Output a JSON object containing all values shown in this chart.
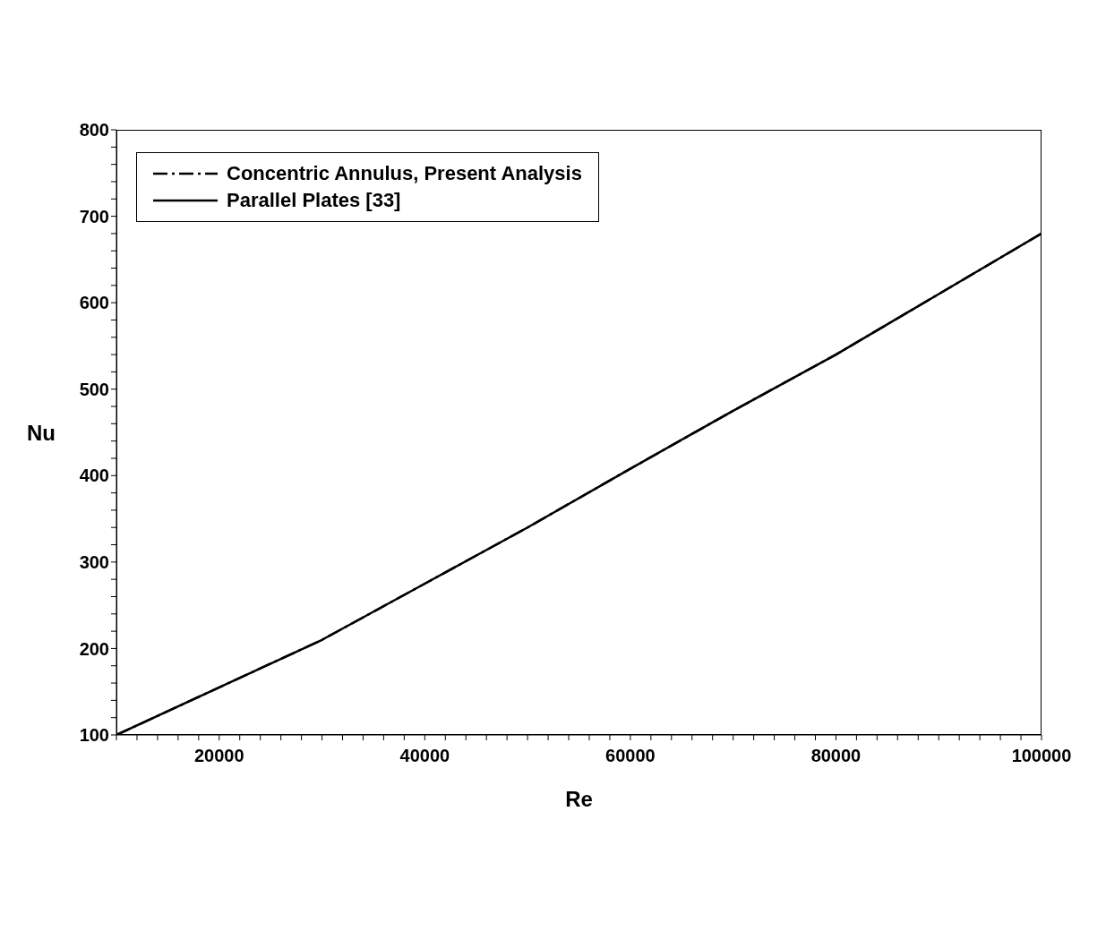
{
  "chart_data": {
    "type": "line",
    "xlabel": "Re",
    "ylabel": "Nu",
    "legend": "top left",
    "marker": "none",
    "grid": false,
    "xlim": [
      10000,
      100000
    ],
    "xticks": [
      {
        "value": 10000,
        "label": null
      },
      {
        "value": 12000,
        "label": null
      },
      {
        "value": 14000,
        "label": null
      },
      {
        "value": 16000,
        "label": null
      },
      {
        "value": 18000,
        "label": null
      },
      20000,
      {
        "value": 22000,
        "label": null
      },
      {
        "value": 24000,
        "label": null
      },
      {
        "value": 26000,
        "label": null
      },
      {
        "value": 28000,
        "label": null
      },
      {
        "value": 30000,
        "label": null
      },
      {
        "value": 32000,
        "label": null
      },
      {
        "value": 34000,
        "label": null
      },
      {
        "value": 36000,
        "label": null
      },
      {
        "value": 38000,
        "label": null
      },
      40000,
      {
        "value": 42000,
        "label": null
      },
      {
        "value": 44000,
        "label": null
      },
      {
        "value": 46000,
        "label": null
      },
      {
        "value": 48000,
        "label": null
      },
      {
        "value": 50000,
        "label": null
      },
      {
        "value": 52000,
        "label": null
      },
      {
        "value": 54000,
        "label": null
      },
      {
        "value": 56000,
        "label": null
      },
      {
        "value": 58000,
        "label": null
      },
      60000,
      {
        "value": 62000,
        "label": null
      },
      {
        "value": 64000,
        "label": null
      },
      {
        "value": 66000,
        "label": null
      },
      {
        "value": 68000,
        "label": null
      },
      {
        "value": 70000,
        "label": null
      },
      {
        "value": 72000,
        "label": null
      },
      {
        "value": 74000,
        "label": null
      },
      {
        "value": 76000,
        "label": null
      },
      {
        "value": 78000,
        "label": null
      },
      80000,
      {
        "value": 82000,
        "label": null
      },
      {
        "value": 84000,
        "label": null
      },
      {
        "value": 86000,
        "label": null
      },
      {
        "value": 88000,
        "label": null
      },
      {
        "value": 90000,
        "label": null
      },
      {
        "value": 92000,
        "label": null
      },
      {
        "value": 94000,
        "label": null
      },
      {
        "value": 96000,
        "label": null
      },
      {
        "value": 98000,
        "label": null
      },
      100000
    ],
    "ylim": [
      100,
      800
    ],
    "yticks": [
      100,
      {
        "value": 120,
        "label": null
      },
      {
        "value": 140,
        "label": null
      },
      {
        "value": 160,
        "label": null
      },
      {
        "value": 180,
        "label": null
      },
      200,
      {
        "value": 220,
        "label": null
      },
      {
        "value": 240,
        "label": null
      },
      {
        "value": 260,
        "label": null
      },
      {
        "value": 280,
        "label": null
      },
      300,
      {
        "value": 320,
        "label": null
      },
      {
        "value": 340,
        "label": null
      },
      {
        "value": 360,
        "label": null
      },
      {
        "value": 380,
        "label": null
      },
      400,
      {
        "value": 420,
        "label": null
      },
      {
        "value": 440,
        "label": null
      },
      {
        "value": 460,
        "label": null
      },
      {
        "value": 480,
        "label": null
      },
      500,
      {
        "value": 520,
        "label": null
      },
      {
        "value": 540,
        "label": null
      },
      {
        "value": 560,
        "label": null
      },
      {
        "value": 580,
        "label": null
      },
      600,
      {
        "value": 620,
        "label": null
      },
      {
        "value": 640,
        "label": null
      },
      {
        "value": 660,
        "label": null
      },
      {
        "value": 680,
        "label": null
      },
      700,
      {
        "value": 720,
        "label": null
      },
      {
        "value": 740,
        "label": null
      },
      {
        "value": 760,
        "label": null
      },
      {
        "value": 780,
        "label": null
      },
      800
    ],
    "x": [
      10000,
      20000,
      30000,
      40000,
      50000,
      60000,
      70000,
      80000,
      90000,
      100000
    ],
    "series": [
      {
        "name": "Concentric Annulus, Present Analysis",
        "color": "#000000",
        "line_style": "dashed",
        "values": [
          100,
          155,
          210,
          275,
          340,
          408,
          475,
          540,
          610,
          680
        ]
      },
      {
        "name": "Parallel Plates [33]",
        "color": "#000000",
        "line_style": "solid",
        "values": [
          100,
          155,
          210,
          275,
          340,
          408,
          475,
          540,
          610,
          680
        ]
      }
    ]
  }
}
